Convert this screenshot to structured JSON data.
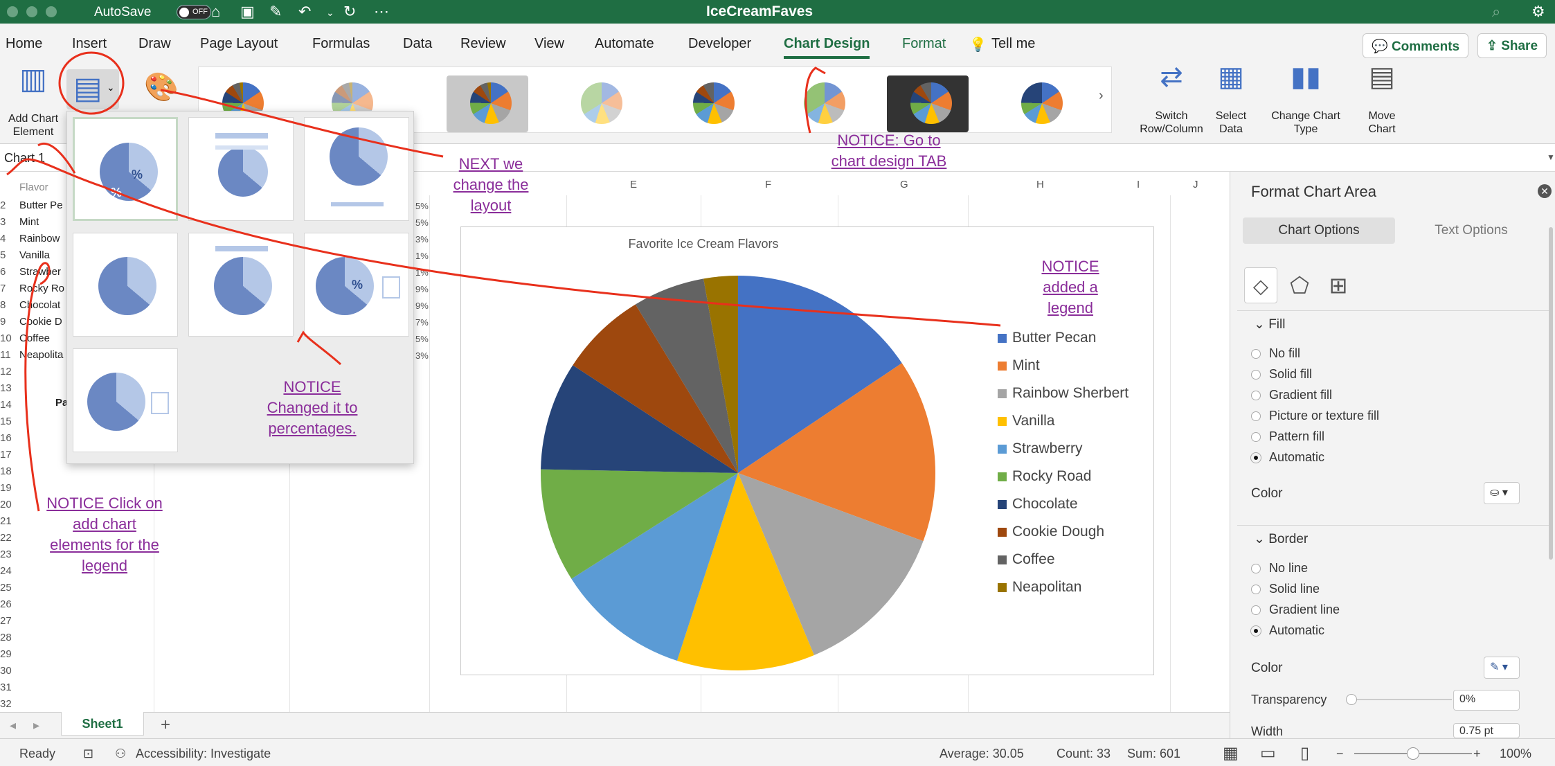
{
  "titlebar": {
    "autosave_label": "AutoSave",
    "autosave_state": "OFF",
    "doc_title": "IceCreamFaves",
    "icons": [
      "home-icon",
      "save-icon",
      "edit-icon",
      "undo-icon",
      "redo-icon",
      "more-icon"
    ]
  },
  "menu": {
    "tabs": [
      "Home",
      "Insert",
      "Draw",
      "Page Layout",
      "Formulas",
      "Data",
      "Review",
      "View",
      "Automate",
      "Developer",
      "Chart Design",
      "Format"
    ],
    "tell_me": "Tell me",
    "comments": "Comments",
    "share": "Share",
    "active": "Chart Design"
  },
  "ribbon": {
    "add_chart_element": "Add Chart Element",
    "switch_row_col": "Switch Row/Column",
    "select_data": "Select Data",
    "change_chart_type": "Change Chart Type",
    "move_chart": "Move Chart"
  },
  "formula_bar": {
    "name_box": "Chart 1"
  },
  "grid": {
    "columns": [
      "E",
      "F",
      "G",
      "H",
      "I",
      "J"
    ],
    "rows": [
      "2",
      "3",
      "4",
      "5",
      "6",
      "7",
      "8",
      "9",
      "10",
      "11",
      "12",
      "13",
      "14",
      "15",
      "16",
      "17",
      "18",
      "19",
      "20",
      "21",
      "22",
      "23",
      "24",
      "25",
      "26",
      "27",
      "28",
      "29",
      "30",
      "31",
      "32"
    ],
    "header_cell": "Flavor",
    "cells": [
      "Butter Pe",
      "Mint",
      "Rainbow",
      "Vanilla",
      "Strawber",
      "Rocky Ro",
      "Chocolat",
      "Cookie D",
      "Coffee",
      "Neapolita"
    ],
    "row14_text": "Pa",
    "pct_cells": [
      "5%",
      "5%",
      "3%",
      "1%",
      "1%",
      "9%",
      "9%",
      "7%",
      "5%",
      "3%"
    ]
  },
  "chart_data": {
    "type": "pie",
    "title": "Favorite Ice Cream Flavors",
    "categories": [
      "Butter Pecan",
      "Mint",
      "Rainbow Sherbert",
      "Vanilla",
      "Strawberry",
      "Rocky Road",
      "Chocolate",
      "Cookie Dough",
      "Coffee",
      "Neapolitan"
    ],
    "values": [
      15.6,
      15.0,
      13.1,
      11.3,
      11.0,
      9.3,
      8.9,
      7.1,
      5.9,
      2.8
    ],
    "colors": [
      "#4472c4",
      "#ed7d31",
      "#a5a5a5",
      "#ffc000",
      "#5b9bd5",
      "#70ad47",
      "#264478",
      "#9e480e",
      "#636363",
      "#997300"
    ],
    "legend_position": "right"
  },
  "pane": {
    "title": "Format Chart Area",
    "tab_chart": "Chart Options",
    "tab_text": "Text Options",
    "fill_header": "Fill",
    "fill_options": [
      "No fill",
      "Solid fill",
      "Gradient fill",
      "Picture or texture fill",
      "Pattern fill",
      "Automatic"
    ],
    "fill_selected": "Automatic",
    "color_label": "Color",
    "border_header": "Border",
    "border_options": [
      "No line",
      "Solid line",
      "Gradient line",
      "Automatic"
    ],
    "border_selected": "Automatic",
    "border_color_label": "Color",
    "transparency_label": "Transparency",
    "transparency_value": "0%",
    "width_label": "Width",
    "width_value": "0.75 pt"
  },
  "sheets": {
    "active": "Sheet1",
    "add": "+"
  },
  "status": {
    "ready": "Ready",
    "accessibility": "Accessibility: Investigate",
    "average": "Average: 30.05",
    "count": "Count: 33",
    "sum": "Sum: 601",
    "zoom": "100%"
  },
  "annotations": {
    "next_layout": "NEXT we change the layout",
    "go_chart_design": "NOTICE: Go to chart design TAB",
    "added_legend": "NOTICE added a legend",
    "percentages": "NOTICE Changed it to percentages.",
    "add_elements": "NOTICE Click on add chart elements for the legend"
  }
}
